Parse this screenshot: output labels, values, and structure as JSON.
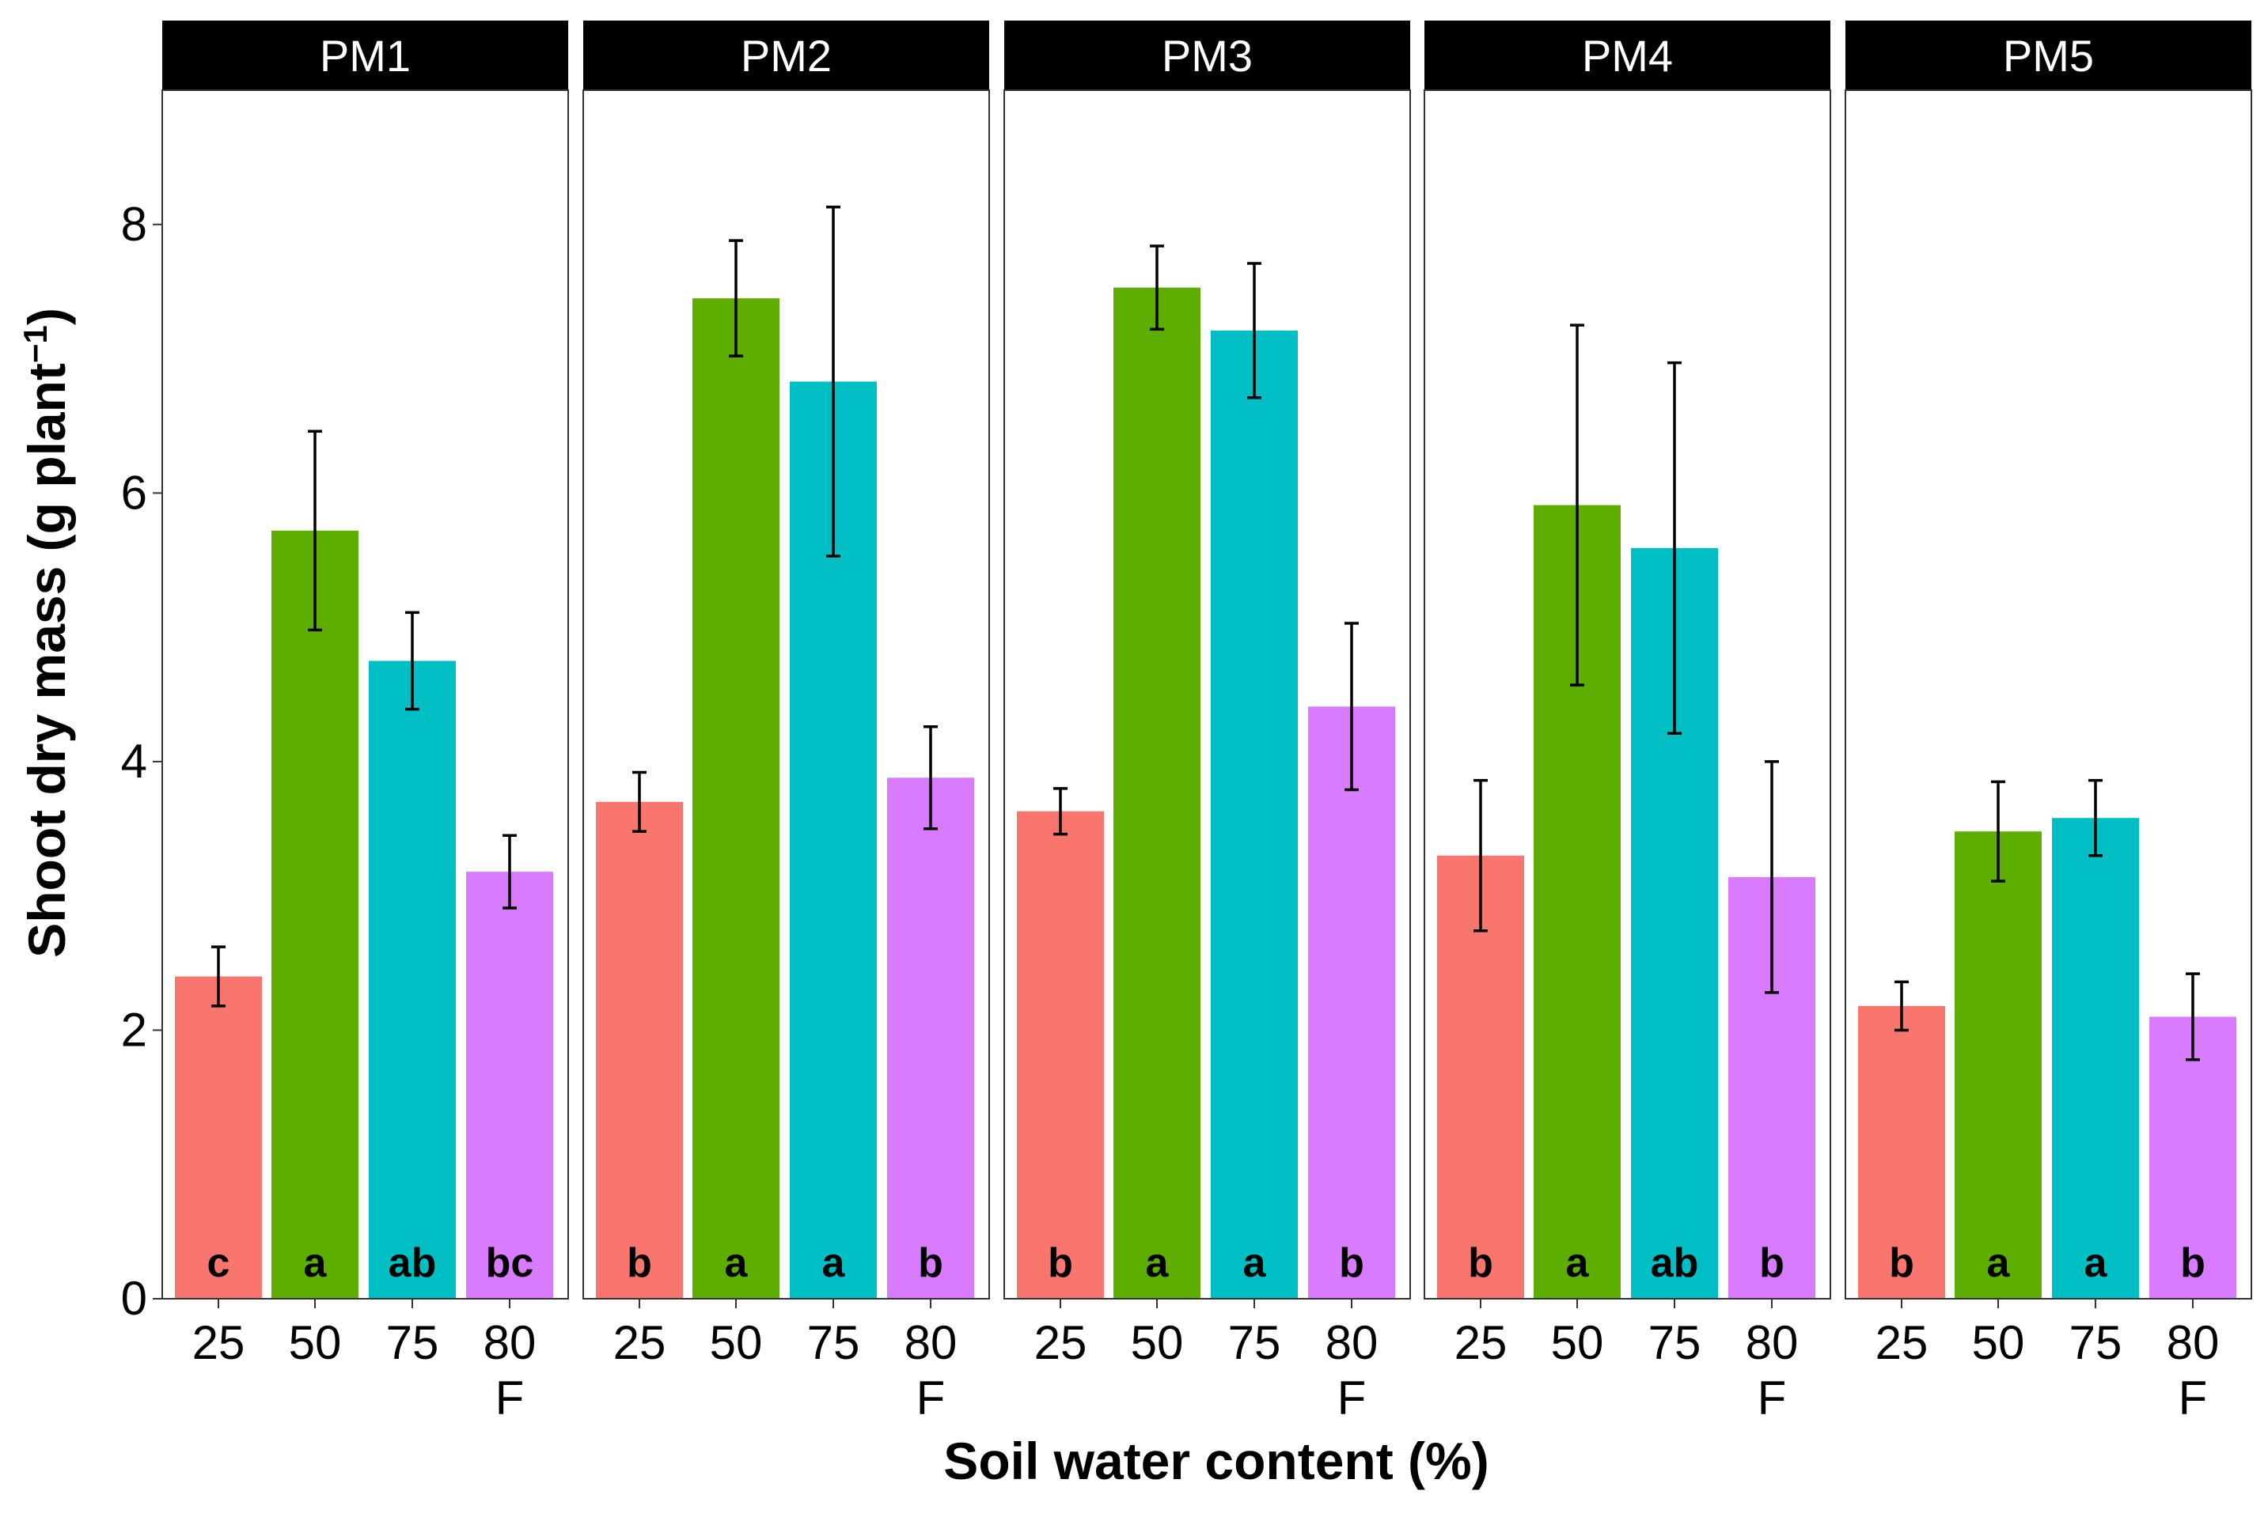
{
  "chart_data": {
    "type": "bar",
    "facet_by": "Potting medium",
    "xlabel": "Soil water content (%)",
    "ylabel_main": "Shoot dry mass (g plant",
    "ylabel_sup": "−1",
    "ylabel_end": ")",
    "ylim": [
      0,
      9
    ],
    "yticks": [
      0,
      2,
      4,
      6,
      8
    ],
    "categories": [
      {
        "line1": "25",
        "line2": ""
      },
      {
        "line1": "50",
        "line2": ""
      },
      {
        "line1": "75",
        "line2": ""
      },
      {
        "line1": "80",
        "line2": "F"
      }
    ],
    "colors": [
      "#F8766D",
      "#5DAE00",
      "#00BFC4",
      "#D97BFF"
    ],
    "panels": [
      {
        "name": "PM1",
        "values": [
          2.4,
          5.72,
          4.75,
          3.18
        ],
        "errors": [
          0.22,
          0.74,
          0.36,
          0.27
        ],
        "letters": [
          "c",
          "a",
          "ab",
          "bc"
        ]
      },
      {
        "name": "PM2",
        "values": [
          3.7,
          7.45,
          6.83,
          3.88
        ],
        "errors": [
          0.22,
          0.43,
          1.3,
          0.38
        ],
        "letters": [
          "b",
          "a",
          "a",
          "b"
        ]
      },
      {
        "name": "PM3",
        "values": [
          3.63,
          7.53,
          7.21,
          4.41
        ],
        "errors": [
          0.17,
          0.31,
          0.5,
          0.62
        ],
        "letters": [
          "b",
          "a",
          "a",
          "b"
        ]
      },
      {
        "name": "PM4",
        "values": [
          3.3,
          5.91,
          5.59,
          3.14
        ],
        "errors": [
          0.56,
          1.34,
          1.38,
          0.86
        ],
        "letters": [
          "b",
          "a",
          "ab",
          "b"
        ]
      },
      {
        "name": "PM5",
        "values": [
          2.18,
          3.48,
          3.58,
          2.1
        ],
        "errors": [
          0.18,
          0.37,
          0.28,
          0.32
        ],
        "letters": [
          "b",
          "a",
          "a",
          "b"
        ]
      }
    ]
  }
}
